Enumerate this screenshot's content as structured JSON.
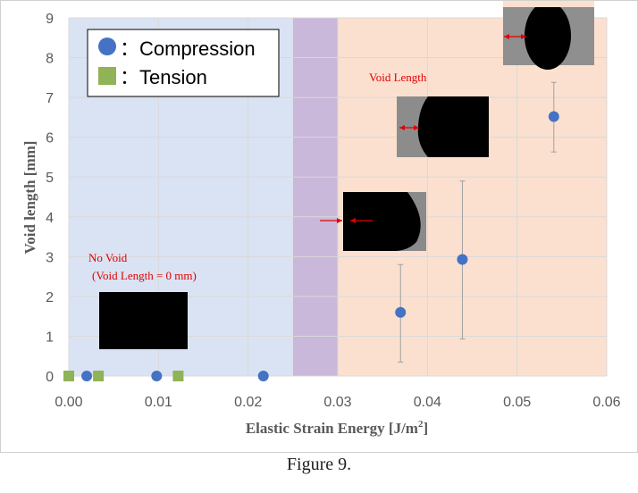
{
  "caption": "Figure 9.",
  "chart_data": {
    "type": "scatter",
    "xlabel": "Elastic Strain Energy [J/m",
    "xlabel_sup": "2",
    "xlabel_end": "]",
    "ylabel": "Void length [mm]",
    "xlim": [
      0,
      0.06
    ],
    "ylim": [
      0,
      9
    ],
    "x_ticks": [
      "0.00",
      "0.01",
      "0.02",
      "0.03",
      "0.04",
      "0.05",
      "0.06"
    ],
    "y_ticks": [
      "0",
      "1",
      "2",
      "3",
      "4",
      "5",
      "6",
      "7",
      "8",
      "9"
    ],
    "grid": true,
    "regions": [
      {
        "from": 0,
        "to": 0.025,
        "color": "#dae3f3"
      },
      {
        "from": 0.025,
        "to": 0.03,
        "color": "#c9b8da"
      },
      {
        "from": 0.03,
        "to": 0.06,
        "color": "#fbe0d0"
      }
    ],
    "legend": {
      "placement": "top-left",
      "entries": [
        {
          "marker": "circle",
          "color": "#4472c4",
          "label": "：Compression"
        },
        {
          "marker": "square",
          "color": "#8fb356",
          "label": "：Tension"
        }
      ]
    },
    "series": [
      {
        "marker": "circle",
        "color": "#4472c4",
        "points": [
          {
            "x": 0.002,
            "y": 0
          },
          {
            "x": 0.0098,
            "y": 0
          },
          {
            "x": 0.0217,
            "y": 0
          },
          {
            "x": 0.037,
            "y": 1.6,
            "err_low": 0.35,
            "err_high": 2.8
          },
          {
            "x": 0.0439,
            "y": 2.93,
            "err_low": 0.93,
            "err_high": 4.9
          },
          {
            "x": 0.0541,
            "y": 6.52,
            "err_low": 5.63,
            "err_high": 7.38
          }
        ]
      },
      {
        "marker": "square",
        "color": "#8fb356",
        "points": [
          {
            "x": 0.0,
            "y": 0
          },
          {
            "x": 0.0033,
            "y": 0
          },
          {
            "x": 0.0122,
            "y": 0
          }
        ]
      }
    ],
    "annotations": {
      "no_void_line1": "No Void",
      "no_void_line2": "(Void Length  = 0 mm)",
      "void_length": "Void Length"
    }
  }
}
